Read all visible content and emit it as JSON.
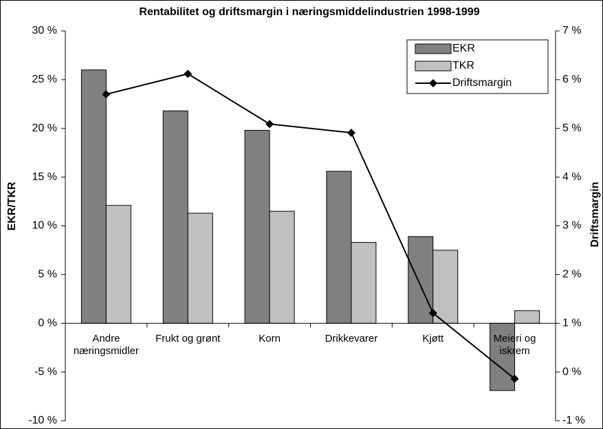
{
  "chart_data": {
    "type": "bar_line",
    "title": "Rentabilitet og driftsmargin i næringsmiddelindustrien 1998-1999",
    "y_label": "EKR/TKR",
    "y2_label": "Driftsmargin",
    "categories": [
      "Andre\nnæringsmidler",
      "Frukt og grønt",
      "Korn",
      "Drikkevarer",
      "Kjøtt",
      "Meieri og\niskrem"
    ],
    "series": [
      {
        "name": "EKR",
        "type": "bar",
        "color": "#808080",
        "values": [
          26,
          21.8,
          19.8,
          15.6,
          8.9,
          -6.9
        ]
      },
      {
        "name": "TKR",
        "type": "bar",
        "color": "#c0c0c0",
        "values": [
          12.1,
          11.3,
          11.5,
          8.3,
          7.5,
          1.3
        ]
      },
      {
        "name": "Driftsmargin",
        "type": "line",
        "axis": "y2",
        "color": "#000000",
        "values": [
          5.7,
          6.12,
          5.09,
          4.91,
          1.21,
          -0.14
        ]
      }
    ],
    "ylim": [
      -10,
      30
    ],
    "yticks": [
      {
        "value": -10,
        "label": "-10 %"
      },
      {
        "value": -5,
        "label": "-5 %"
      },
      {
        "value": 0,
        "label": "0 %"
      },
      {
        "value": 5,
        "label": "5 %"
      },
      {
        "value": 10,
        "label": "10 %"
      },
      {
        "value": 15,
        "label": "15 %"
      },
      {
        "value": 20,
        "label": "20 %"
      },
      {
        "value": 25,
        "label": "25 %"
      },
      {
        "value": 30,
        "label": "30 %"
      }
    ],
    "y2lim": [
      -1,
      7
    ],
    "y2ticks": [
      {
        "value": -1,
        "label": "-1 %"
      },
      {
        "value": 0,
        "label": "0 %"
      },
      {
        "value": 1,
        "label": "1 %"
      },
      {
        "value": 2,
        "label": "2 %"
      },
      {
        "value": 3,
        "label": "3 %"
      },
      {
        "value": 4,
        "label": "4 %"
      },
      {
        "value": 5,
        "label": "5 %"
      },
      {
        "value": 6,
        "label": "6 %"
      },
      {
        "value": 7,
        "label": "7 %"
      }
    ],
    "legend": "top-right"
  }
}
